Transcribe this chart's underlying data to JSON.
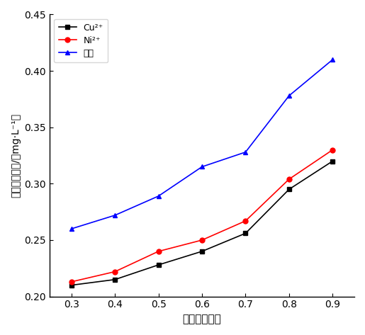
{
  "x": [
    0.3,
    0.4,
    0.5,
    0.6,
    0.7,
    0.8,
    0.9
  ],
  "cu": [
    0.21,
    0.215,
    0.228,
    0.24,
    0.256,
    0.295,
    0.32
  ],
  "ni": [
    0.213,
    0.222,
    0.24,
    0.25,
    0.267,
    0.304,
    0.33
  ],
  "cr": [
    0.26,
    0.272,
    0.289,
    0.315,
    0.328,
    0.378,
    0.41
  ],
  "cu_color": "#000000",
  "ni_color": "#ff0000",
  "cr_color": "#0000ff",
  "ylabel": "金属离子浓度/（mg·L⁻¹）",
  "xlabel": "超滤膜透过率",
  "ylim": [
    0.2,
    0.45
  ],
  "xlim": [
    0.25,
    0.95
  ],
  "yticks": [
    0.2,
    0.25,
    0.3,
    0.35,
    0.4,
    0.45
  ],
  "xticks": [
    0.3,
    0.4,
    0.5,
    0.6,
    0.7,
    0.8,
    0.9
  ],
  "legend_cu": "Cu²⁺",
  "legend_ni": "Ni²⁺",
  "legend_cr": "总铬",
  "figsize": [
    5.15,
    4.73
  ],
  "dpi": 100
}
